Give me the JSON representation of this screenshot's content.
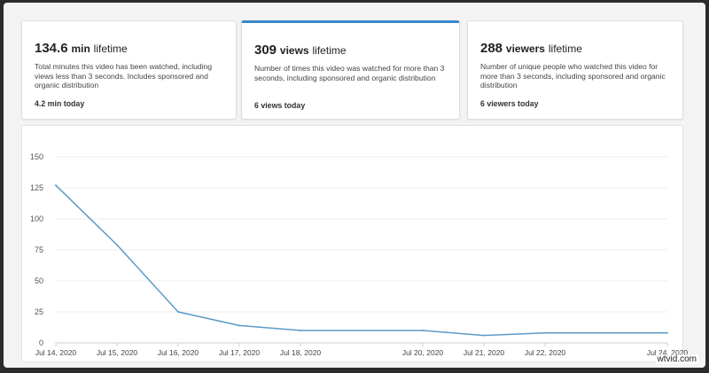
{
  "cards": [
    {
      "value": "134.6",
      "unit": "min",
      "suffix": "lifetime",
      "description": "Total minutes this video has been watched, including views less than 3 seconds. Includes sponsored and organic distribution",
      "today": "4.2 min today",
      "selected": false
    },
    {
      "value": "309",
      "unit": "views",
      "suffix": "lifetime",
      "description": "Number of times this video was watched for more than 3 seconds, including sponsored and organic distribution",
      "today": "6 views today",
      "selected": true
    },
    {
      "value": "288",
      "unit": "viewers",
      "suffix": "lifetime",
      "description": "Number of unique people who watched this video for more than 3 seconds, including sponsored and organic distribution",
      "today": "6 viewers today",
      "selected": false
    }
  ],
  "accent_color": "#3a87c9",
  "chart_data": {
    "type": "line",
    "x": [
      "2020-07-14",
      "2020-07-15",
      "2020-07-16",
      "2020-07-17",
      "2020-07-18",
      "2020-07-20",
      "2020-07-21",
      "2020-07-22",
      "2020-07-24"
    ],
    "tick_labels": [
      "Jul 14, 2020",
      "Jul 15, 2020",
      "Jul 16, 2020",
      "Jul 17, 2020",
      "Jul 18, 2020",
      "Jul 20, 2020",
      "Jul 21, 2020",
      "Jul 22, 2020",
      "Jul 24, 2020"
    ],
    "values": [
      127,
      79,
      25,
      14,
      10,
      10,
      6,
      8,
      8
    ],
    "yticks": [
      0,
      25,
      50,
      75,
      100,
      125,
      150
    ],
    "ylim": [
      0,
      150
    ],
    "grid": true,
    "line_color": "#5b9bc8"
  },
  "watermark": "wtvid.com"
}
